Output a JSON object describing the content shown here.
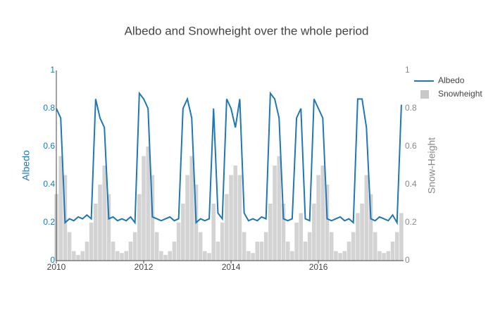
{
  "chart_data": {
    "type": "combo",
    "title": "Albedo and Snowheight over the whole period",
    "y_label": "Albedo",
    "y2_label": "Snow-Height",
    "x": [
      2010.0,
      2010.1,
      2010.2,
      2010.3,
      2010.4,
      2010.5,
      2010.6,
      2010.7,
      2010.8,
      2010.9,
      2011.0,
      2011.1,
      2011.2,
      2011.3,
      2011.4,
      2011.5,
      2011.6,
      2011.7,
      2011.8,
      2011.9,
      2012.0,
      2012.1,
      2012.2,
      2012.3,
      2012.4,
      2012.5,
      2012.6,
      2012.7,
      2012.8,
      2012.9,
      2013.0,
      2013.1,
      2013.2,
      2013.3,
      2013.4,
      2013.5,
      2013.6,
      2013.7,
      2013.8,
      2013.9,
      2014.0,
      2014.1,
      2014.2,
      2014.3,
      2014.4,
      2014.5,
      2014.6,
      2014.7,
      2014.8,
      2014.9,
      2015.0,
      2015.1,
      2015.2,
      2015.3,
      2015.4,
      2015.5,
      2015.6,
      2015.7,
      2015.8,
      2015.9,
      2016.0,
      2016.1,
      2016.2,
      2016.3,
      2016.4,
      2016.5,
      2016.6,
      2016.7,
      2016.8,
      2016.9,
      2017.0,
      2017.1,
      2017.2,
      2017.3,
      2017.4,
      2017.5,
      2017.6,
      2017.7,
      2017.8,
      2017.9
    ],
    "series": [
      {
        "name": "Snowheight",
        "type": "bar",
        "axis": "y2",
        "color": "#c8c8c8",
        "values": [
          0.35,
          0.55,
          0.45,
          0.15,
          0.05,
          0.03,
          0.05,
          0.1,
          0.2,
          0.3,
          0.4,
          0.5,
          0.35,
          0.1,
          0.05,
          0.04,
          0.05,
          0.1,
          0.15,
          0.35,
          0.55,
          0.6,
          0.45,
          0.15,
          0.05,
          0.03,
          0.05,
          0.1,
          0.2,
          0.3,
          0.45,
          0.55,
          0.4,
          0.15,
          0.05,
          0.04,
          0.3,
          0.1,
          0.2,
          0.35,
          0.45,
          0.5,
          0.45,
          0.15,
          0.05,
          0.04,
          0.1,
          0.1,
          0.15,
          0.3,
          0.5,
          0.55,
          0.3,
          0.1,
          0.05,
          0.2,
          0.25,
          0.1,
          0.15,
          0.3,
          0.45,
          0.5,
          0.4,
          0.15,
          0.05,
          0.04,
          0.05,
          0.1,
          0.15,
          0.25,
          0.3,
          0.45,
          0.35,
          0.15,
          0.05,
          0.04,
          0.05,
          0.1,
          0.15,
          0.25
        ]
      },
      {
        "name": "Albedo",
        "type": "line",
        "color": "#1f77b4",
        "values": [
          0.8,
          0.75,
          0.2,
          0.22,
          0.21,
          0.23,
          0.22,
          0.24,
          0.22,
          0.85,
          0.75,
          0.7,
          0.22,
          0.23,
          0.21,
          0.22,
          0.21,
          0.23,
          0.2,
          0.88,
          0.85,
          0.8,
          0.23,
          0.22,
          0.21,
          0.22,
          0.23,
          0.21,
          0.22,
          0.8,
          0.85,
          0.75,
          0.2,
          0.22,
          0.21,
          0.22,
          0.8,
          0.25,
          0.22,
          0.85,
          0.8,
          0.7,
          0.85,
          0.25,
          0.21,
          0.22,
          0.21,
          0.23,
          0.22,
          0.88,
          0.85,
          0.75,
          0.22,
          0.21,
          0.22,
          0.75,
          0.8,
          0.22,
          0.21,
          0.85,
          0.8,
          0.75,
          0.22,
          0.21,
          0.22,
          0.23,
          0.21,
          0.22,
          0.2,
          0.85,
          0.85,
          0.7,
          0.22,
          0.21,
          0.23,
          0.22,
          0.21,
          0.24,
          0.2,
          0.82
        ]
      }
    ],
    "xlim": [
      2010,
      2017.95
    ],
    "xticks": [
      2010,
      2012,
      2014,
      2016
    ],
    "ylim": [
      0,
      1
    ],
    "yticks": [
      0,
      0.2,
      0.4,
      0.6,
      0.8,
      1
    ],
    "y2lim": [
      0,
      1
    ],
    "y2ticks": [
      0,
      0.2,
      0.4,
      0.6,
      0.8,
      1
    ]
  }
}
